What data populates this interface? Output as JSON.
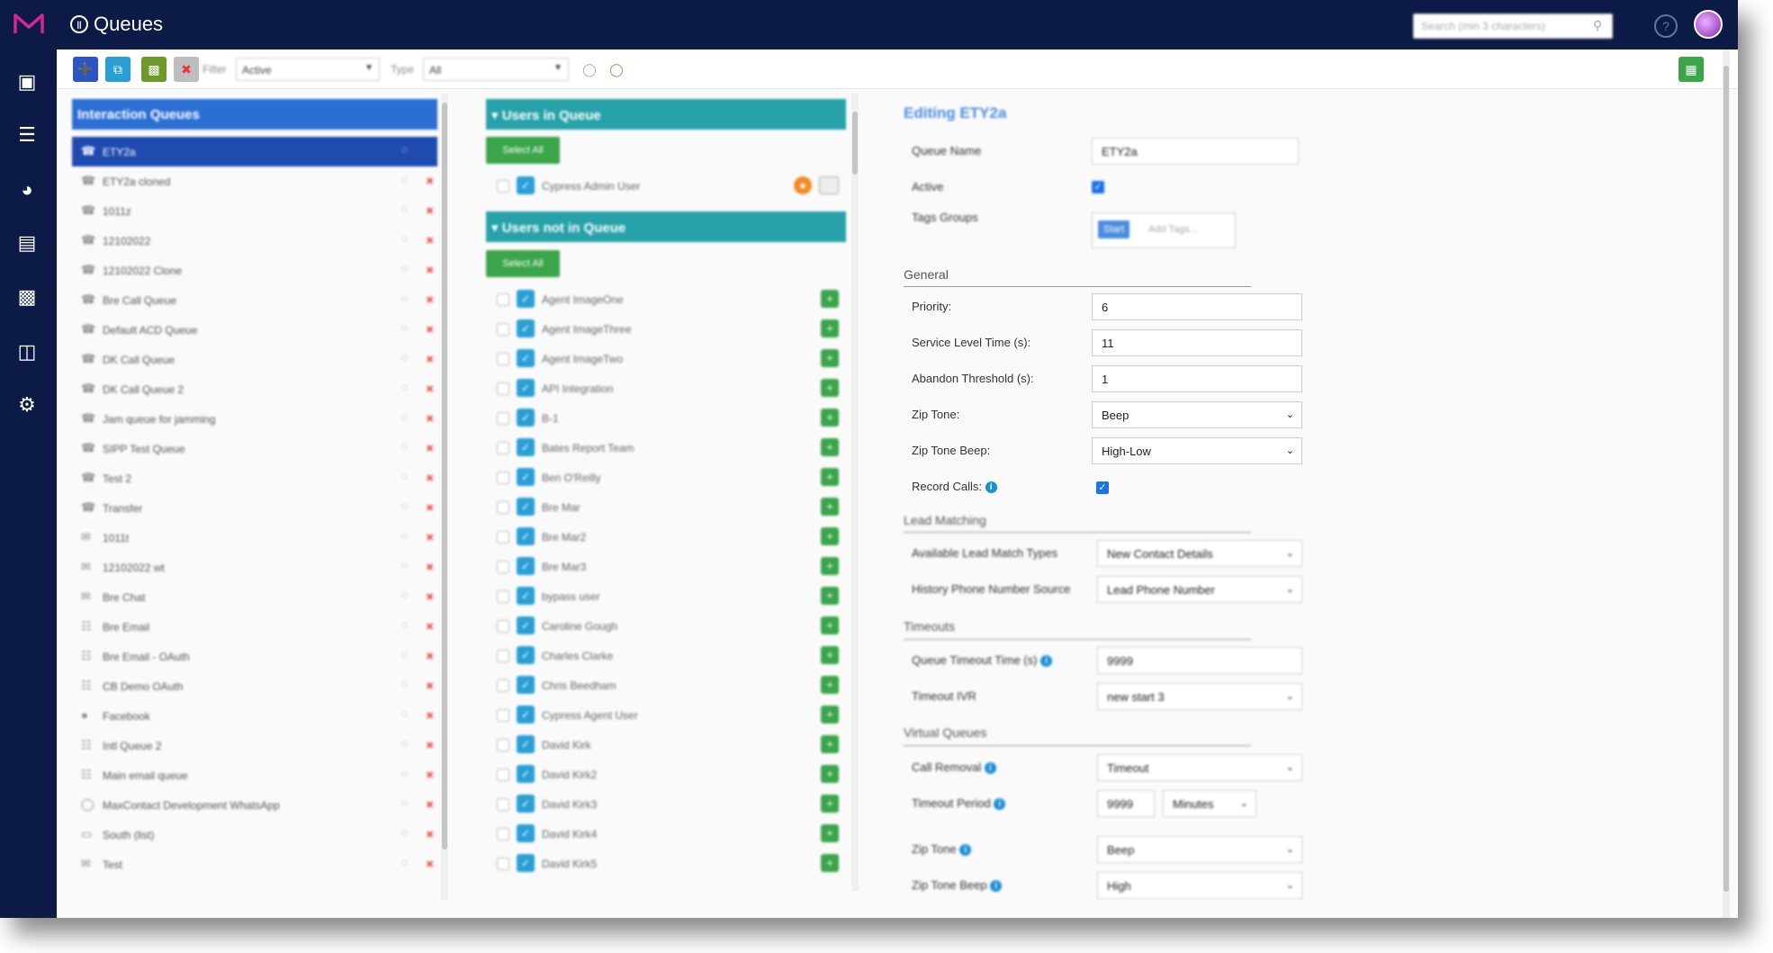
{
  "header": {
    "title": "Queues",
    "search_placeholder": "Search (min 3 characters)",
    "colors": {
      "topbar": "#0c1b45",
      "accent": "#d6249f"
    }
  },
  "toolbar": {
    "filter_label": "Filter",
    "filter_value": "Active",
    "type_label": "Type",
    "type_value": "All"
  },
  "interaction_queues": {
    "title": "Interaction Queues",
    "items": [
      {
        "label": "ETY2a",
        "icon": "phone-icon"
      },
      {
        "label": "ETY2a cloned",
        "icon": "phone-icon"
      },
      {
        "label": "1011z",
        "icon": "phone-icon"
      },
      {
        "label": "12102022",
        "icon": "phone-icon"
      },
      {
        "label": "12102022 Clone",
        "icon": "phone-icon"
      },
      {
        "label": "Bre Call Queue",
        "icon": "phone-icon"
      },
      {
        "label": "Default ACD Queue",
        "icon": "phone-icon"
      },
      {
        "label": "DK Call Queue",
        "icon": "phone-icon"
      },
      {
        "label": "DK Call Queue 2",
        "icon": "phone-icon"
      },
      {
        "label": "Jam queue for jamming",
        "icon": "phone-icon"
      },
      {
        "label": "SIPP Test Queue",
        "icon": "phone-icon"
      },
      {
        "label": "Test 2",
        "icon": "phone-icon"
      },
      {
        "label": "Transfer",
        "icon": "phone-icon"
      },
      {
        "label": "1011t",
        "icon": "chat-icon"
      },
      {
        "label": "12102022 wt",
        "icon": "chat-icon"
      },
      {
        "label": "Bre Chat",
        "icon": "chat-icon"
      },
      {
        "label": "Bre Email",
        "icon": "email-icon"
      },
      {
        "label": "Bre Email - OAuth",
        "icon": "email-icon"
      },
      {
        "label": "CB Demo OAuth",
        "icon": "email-icon"
      },
      {
        "label": "Facebook",
        "icon": "facebook-icon"
      },
      {
        "label": "Intl Queue 2",
        "icon": "email-icon"
      },
      {
        "label": "Main email queue",
        "icon": "email-icon"
      },
      {
        "label": "MaxContact Development WhatsApp",
        "icon": "whatsapp-icon"
      },
      {
        "label": "South (list)",
        "icon": "sms-icon"
      },
      {
        "label": "Test",
        "icon": "chat-icon"
      }
    ]
  },
  "users_in_queue": {
    "title": "Users in Queue",
    "select_all": "Select All",
    "items": [
      {
        "name": "Cypress Admin User"
      }
    ]
  },
  "users_not_in_queue": {
    "title": "Users not in Queue",
    "select_all": "Select All",
    "items": [
      {
        "name": "Agent ImageOne"
      },
      {
        "name": "Agent ImageThree"
      },
      {
        "name": "Agent ImageTwo"
      },
      {
        "name": "API Integration"
      },
      {
        "name": "B-1"
      },
      {
        "name": "Bates Report Team"
      },
      {
        "name": "Ben O'Reilly"
      },
      {
        "name": "Bre Mar"
      },
      {
        "name": "Bre Mar2"
      },
      {
        "name": "Bre Mar3"
      },
      {
        "name": "bypass user"
      },
      {
        "name": "Caroline Gough"
      },
      {
        "name": "Charles Clarke"
      },
      {
        "name": "Chris Beedham"
      },
      {
        "name": "Cypress Agent User"
      },
      {
        "name": "David Kirk"
      },
      {
        "name": "David Kirk2"
      },
      {
        "name": "David Kirk3"
      },
      {
        "name": "David Kirk4"
      },
      {
        "name": "David Kirk5"
      }
    ]
  },
  "editor": {
    "title": "Editing ETY2a",
    "queue_name_label": "Queue Name",
    "queue_name_value": "ETY2a",
    "active_label": "Active",
    "tags_label": "Tags Groups",
    "tag_chip": "Start",
    "add_tags_placeholder": "Add Tags...",
    "general": {
      "title": "General",
      "priority_label": "Priority:",
      "priority_value": "6",
      "slt_label": "Service Level Time (s):",
      "slt_value": "11",
      "abandon_label": "Abandon Threshold (s):",
      "abandon_value": "1",
      "zip_tone_label": "Zip Tone:",
      "zip_tone_value": "Beep",
      "zip_tone_beep_label": "Zip Tone Beep:",
      "zip_tone_beep_value": "High-Low",
      "record_calls_label": "Record Calls:"
    },
    "lead_matching": {
      "title": "Lead Matching",
      "available_label": "Available Lead Match Types",
      "available_value": "New Contact Details",
      "history_label": "History Phone Number Source",
      "history_value": "Lead Phone Number"
    },
    "timeouts": {
      "title": "Timeouts",
      "queue_timeout_label": "Queue Timeout Time (s)",
      "queue_timeout_value": "9999",
      "timeout_ivr_label": "Timeout IVR",
      "timeout_ivr_value": "new start 3"
    },
    "virtual_queues": {
      "title": "Virtual Queues",
      "call_removal_label": "Call Removal",
      "call_removal_value": "Timeout",
      "timeout_period_label": "Timeout Period",
      "timeout_period_value": "9999",
      "timeout_period_unit": "Minutes",
      "zip_tone_label": "Zip Tone",
      "zip_tone_value": "Beep",
      "zip_tone_beep_label": "Zip Tone Beep",
      "zip_tone_beep_value": "High"
    }
  }
}
